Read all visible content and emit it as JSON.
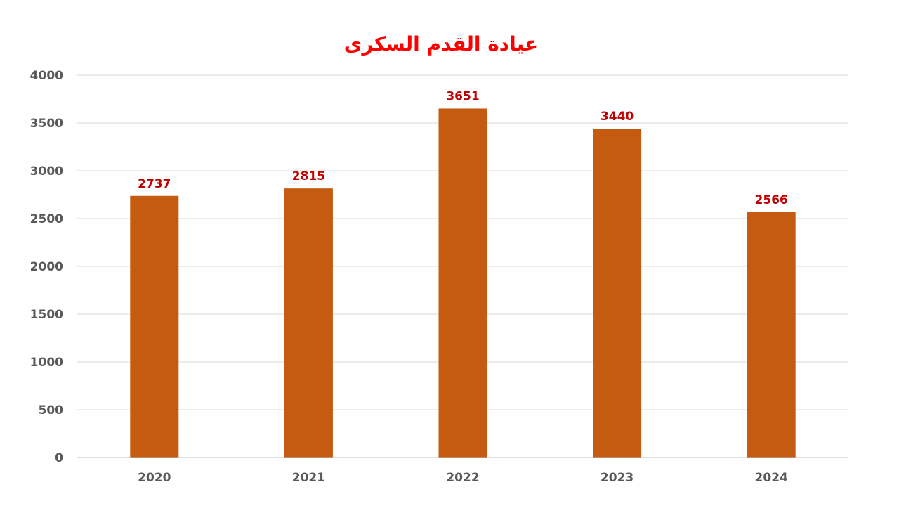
{
  "chart_data": {
    "type": "bar",
    "title": "عيادة القدم السكرى",
    "categories": [
      "2020",
      "2021",
      "2022",
      "2023",
      "2024"
    ],
    "values": [
      2737,
      2815,
      3651,
      3440,
      2566
    ],
    "ylim": [
      0,
      4000
    ],
    "yticks": [
      "0",
      "500",
      "1000",
      "1500",
      "2000",
      "2500",
      "3000",
      "3500",
      "4000"
    ],
    "grid": true,
    "legend": "none",
    "colors": {
      "bar": "#c55a11",
      "data_label": "#c00000",
      "title": "#ff0000"
    }
  }
}
